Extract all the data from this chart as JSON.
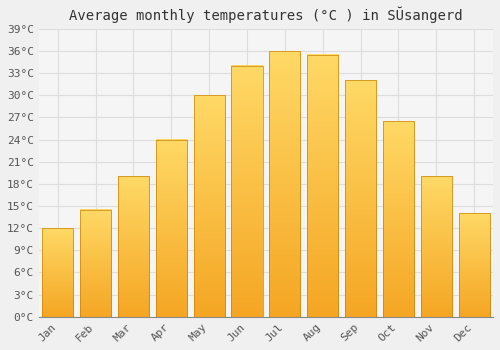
{
  "title": "Average monthly temperatures (°C ) in SŬsangerd",
  "months": [
    "Jan",
    "Feb",
    "Mar",
    "Apr",
    "May",
    "Jun",
    "Jul",
    "Aug",
    "Sep",
    "Oct",
    "Nov",
    "Dec"
  ],
  "temperatures": [
    12,
    14.5,
    19,
    24,
    30,
    34,
    36,
    35.5,
    32,
    26.5,
    19,
    14
  ],
  "bar_color_bottom": "#F5A623",
  "bar_color_top": "#FFD966",
  "bar_edge_color": "#C8820A",
  "background_color": "#F0F0F0",
  "plot_bg_color": "#F5F5F5",
  "grid_color": "#DDDDDD",
  "ylim": [
    0,
    39
  ],
  "yticks": [
    0,
    3,
    6,
    9,
    12,
    15,
    18,
    21,
    24,
    27,
    30,
    33,
    36,
    39
  ],
  "ytick_labels": [
    "0°C",
    "3°C",
    "6°C",
    "9°C",
    "12°C",
    "15°C",
    "18°C",
    "21°C",
    "24°C",
    "27°C",
    "30°C",
    "33°C",
    "36°C",
    "39°C"
  ],
  "title_fontsize": 10,
  "tick_fontsize": 8,
  "font_family": "monospace",
  "bar_width": 0.82
}
